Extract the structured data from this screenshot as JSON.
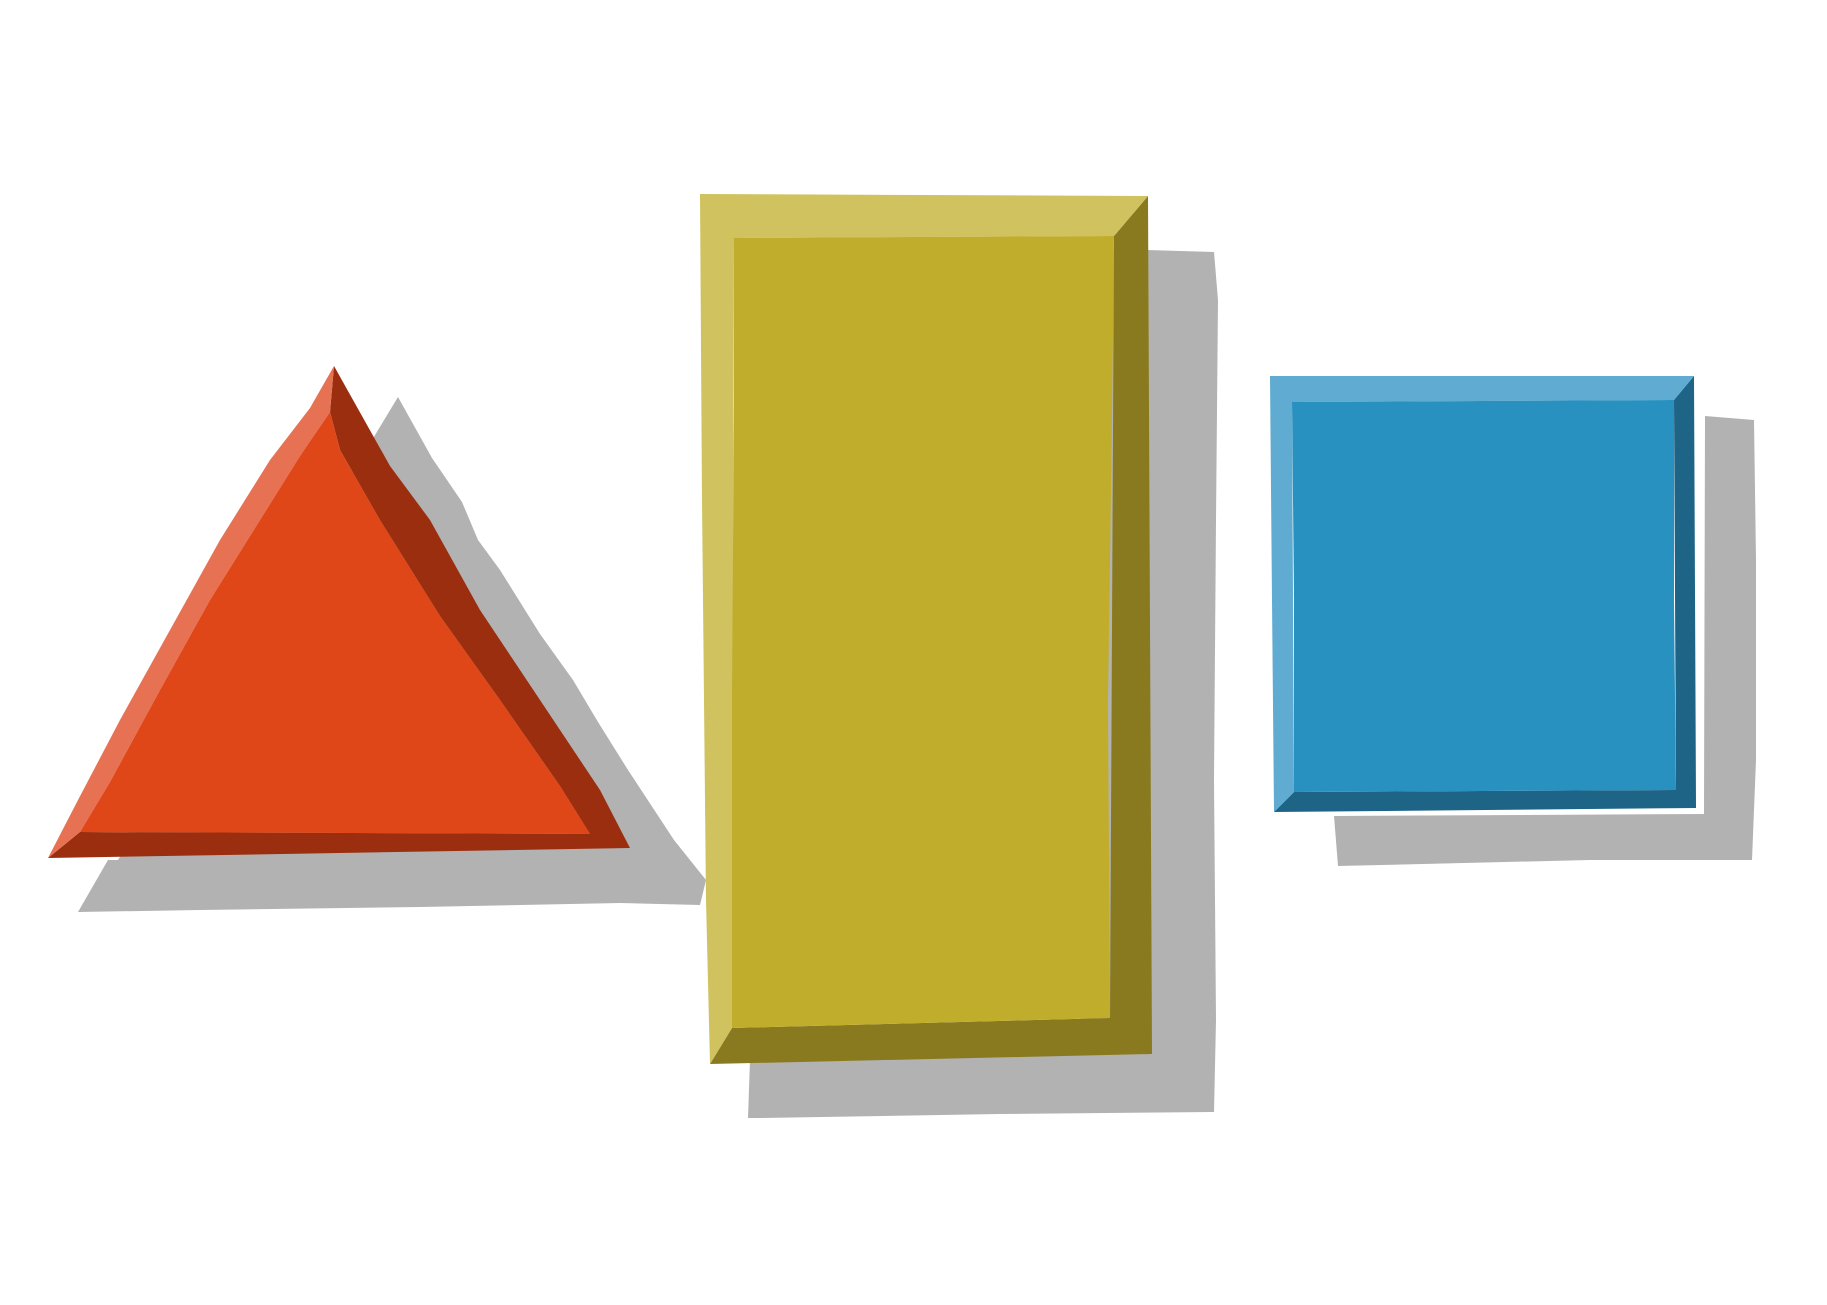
{
  "scene": {
    "description_shapes": [
      "triangle",
      "tall-rectangle",
      "square"
    ],
    "colors": {
      "background": "#ffffff",
      "shadow": "#b2b2b2",
      "triangle_face": "#e04718",
      "triangle_light": "#e77253",
      "triangle_dark": "#9b2e0f",
      "rectangle_face": "#c0ad2b",
      "rectangle_light": "#d0c25f",
      "rectangle_dark": "#8a7a1f",
      "square_face": "#2891c0",
      "square_light": "#5fabd1",
      "square_dark": "#1d6487"
    }
  }
}
